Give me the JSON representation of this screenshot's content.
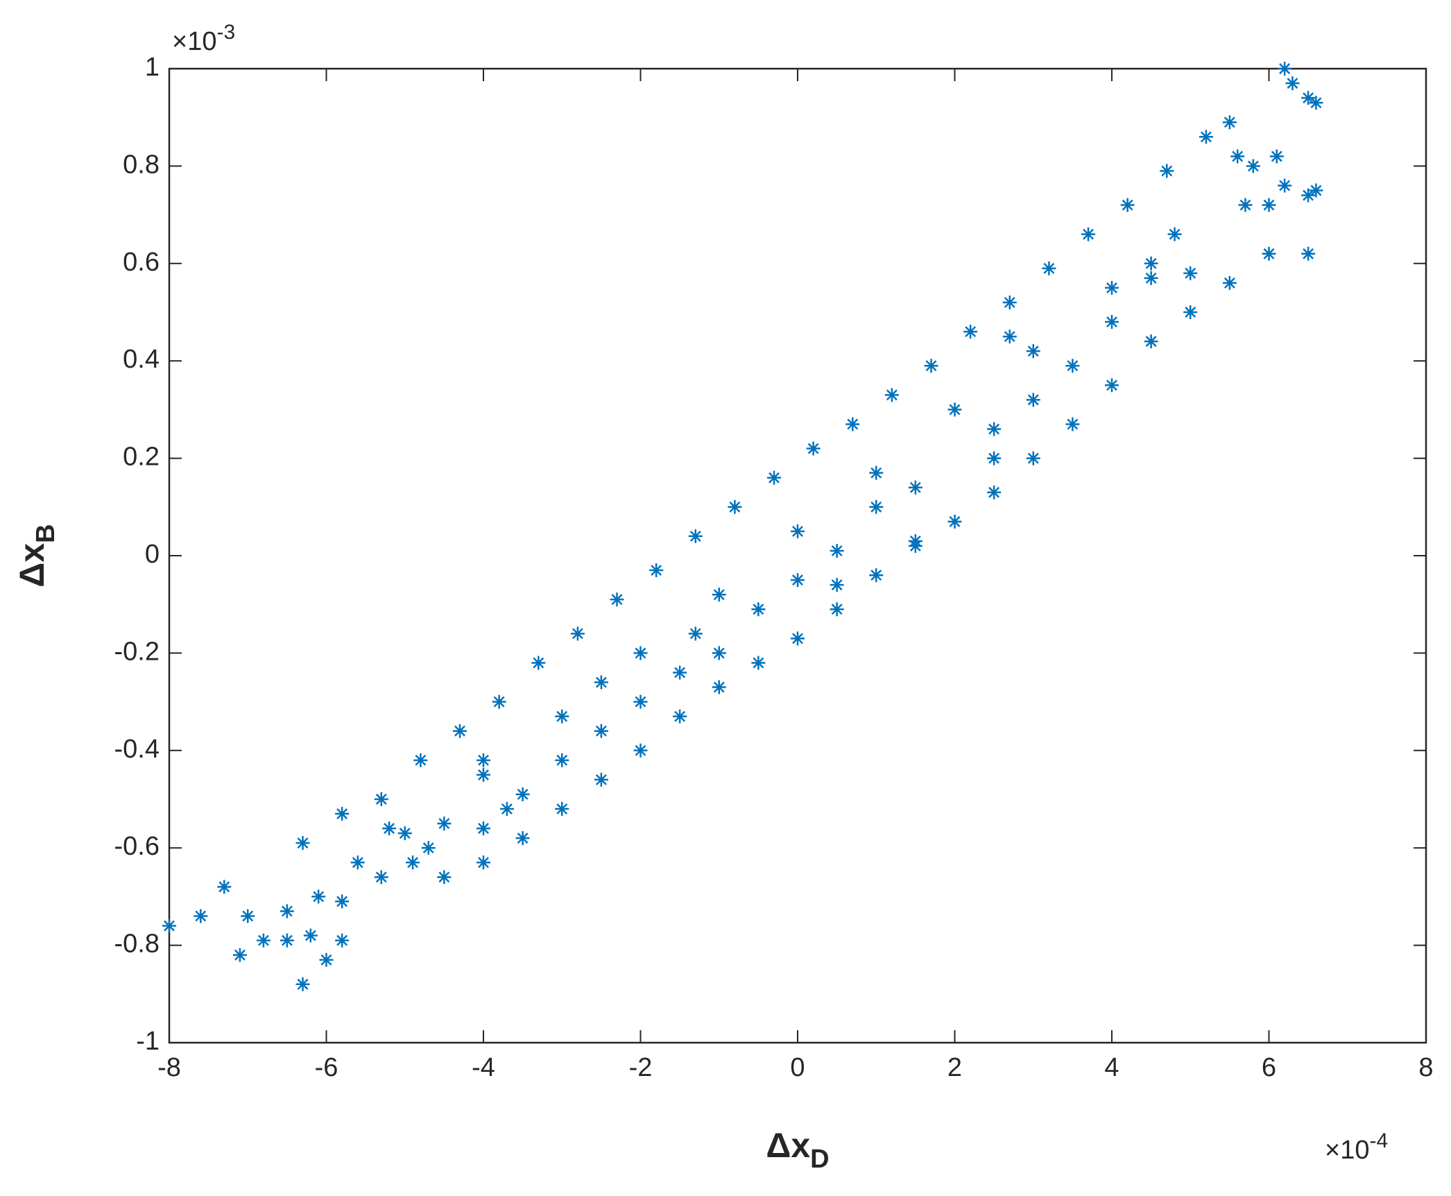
{
  "chart_data": {
    "type": "scatter",
    "xlabel": "Δx",
    "xlabel_sub": "D",
    "ylabel": "Δx",
    "ylabel_sub": "B",
    "x_multiplier": "×10",
    "x_exponent": "-4",
    "y_multiplier": "×10",
    "y_exponent": "-3",
    "color": "#0072bd",
    "marker": "*",
    "xlim": [
      -8,
      8
    ],
    "xticks": [
      -8,
      -6,
      -4,
      -2,
      0,
      2,
      4,
      6,
      8
    ],
    "ylim": [
      -1,
      1
    ],
    "yticks": [
      -1,
      -0.8,
      -0.6,
      -0.4,
      -0.2,
      0,
      0.2,
      0.4,
      0.6,
      0.8,
      1
    ],
    "x": [
      -6.3,
      -5.8,
      -5.3,
      -4.8,
      -4.3,
      -3.8,
      -3.3,
      -2.8,
      -2.3,
      -1.8,
      -1.3,
      -0.8,
      -0.3,
      0.2,
      0.7,
      1.2,
      1.7,
      2.2,
      2.7,
      3.2,
      3.7,
      4.2,
      4.7,
      5.2,
      -4.5,
      -4,
      -3.5,
      -3,
      -2.5,
      -2,
      -1.5,
      -1,
      -0.5,
      0,
      0.5,
      1,
      1.5,
      2,
      2.5,
      3,
      3.5,
      4,
      4.5,
      5,
      5.5,
      6,
      6.6,
      -5,
      -4,
      -3,
      -2,
      -1,
      0,
      1,
      2,
      3,
      4,
      -3.5,
      -2.5,
      -1.5,
      -0.5,
      0.5,
      1.5,
      2.5,
      3.5,
      -4,
      -3,
      -2.5,
      -2,
      -1.3,
      -1,
      0,
      0.5,
      1,
      1.5,
      2.5,
      3,
      2.7,
      4.5,
      4.8,
      4.5,
      5,
      4,
      6.2,
      6.3,
      6.5,
      6.6,
      5.5,
      5.6,
      5.8,
      6.1,
      6.2,
      6.5,
      5.7,
      6,
      6.5,
      -8,
      -7.6,
      -7.3,
      -7,
      -6.5,
      -7.1,
      -6.8,
      -6.5,
      -6.3,
      -6,
      -6.2,
      -5.8,
      -5.8,
      -5.6,
      -5.2,
      -5.3,
      -4.9,
      -4.7,
      -4,
      -3.7,
      -4.5,
      -6.1
    ],
    "y": [
      -0.59,
      -0.53,
      -0.5,
      -0.42,
      -0.36,
      -0.3,
      -0.22,
      -0.16,
      -0.09,
      -0.03,
      0.04,
      0.1,
      0.16,
      0.22,
      0.27,
      0.33,
      0.39,
      0.46,
      0.52,
      0.59,
      0.66,
      0.72,
      0.79,
      0.86,
      -0.66,
      -0.63,
      -0.58,
      -0.52,
      -0.46,
      -0.4,
      -0.33,
      -0.27,
      -0.22,
      -0.17,
      -0.11,
      -0.04,
      0.02,
      0.07,
      0.13,
      0.2,
      0.27,
      0.35,
      0.44,
      0.5,
      0.56,
      0.62,
      0.75,
      -0.57,
      -0.45,
      -0.33,
      -0.2,
      -0.08,
      0.05,
      0.17,
      0.3,
      0.42,
      0.55,
      -0.49,
      -0.36,
      -0.24,
      -0.11,
      0.01,
      0.14,
      0.26,
      0.39,
      -0.42,
      -0.42,
      -0.26,
      -0.3,
      -0.16,
      -0.2,
      -0.05,
      -0.06,
      0.1,
      0.03,
      0.2,
      0.32,
      0.45,
      0.6,
      0.66,
      0.57,
      0.58,
      0.48,
      1,
      0.97,
      0.94,
      0.93,
      0.89,
      0.82,
      0.8,
      0.82,
      0.76,
      0.74,
      0.72,
      0.72,
      0.62,
      -0.76,
      -0.74,
      -0.68,
      -0.74,
      -0.73,
      -0.82,
      -0.79,
      -0.79,
      -0.88,
      -0.83,
      -0.78,
      -0.71,
      -0.79,
      -0.63,
      -0.56,
      -0.66,
      -0.63,
      -0.6,
      -0.56,
      -0.52,
      -0.55,
      -0.7
    ]
  }
}
